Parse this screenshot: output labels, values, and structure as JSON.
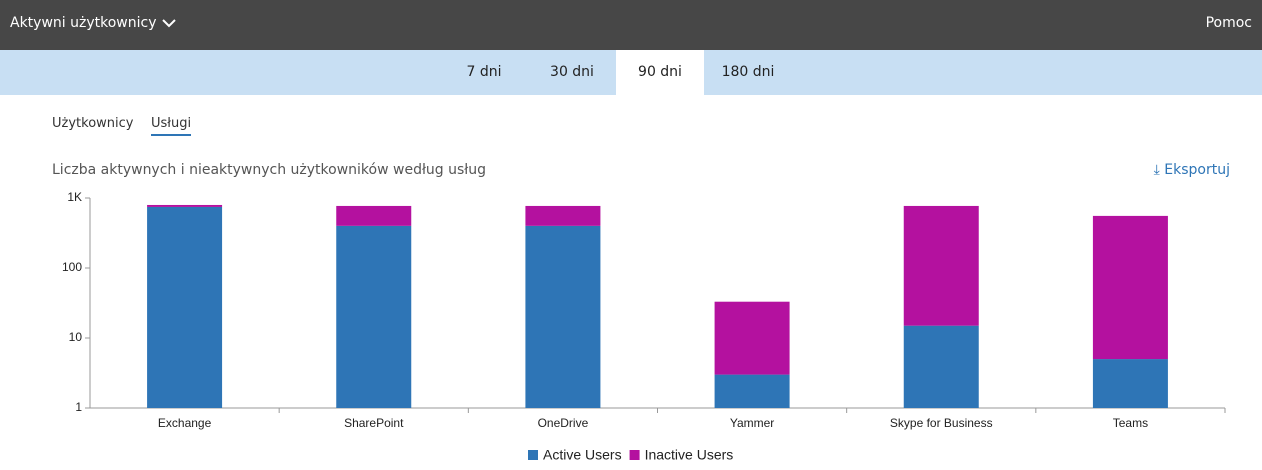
{
  "header": {
    "title": "Aktywni użytkownicy",
    "help": "Pomoc"
  },
  "periods": [
    "7 dni",
    "30 dni",
    "90 dni",
    "180 dni"
  ],
  "selected_period": 2,
  "subtabs": [
    "Użytkownicy",
    "Usługi"
  ],
  "selected_subtab": 1,
  "export": "Eksportuj",
  "chart_data": {
    "type": "bar",
    "stacked": true,
    "title": "Liczba aktywnych i nieaktywnych użytkowników według usług",
    "categories": [
      "Exchange",
      "SharePoint",
      "OneDrive",
      "Yammer",
      "Skype for Business",
      "Teams"
    ],
    "series": [
      {
        "name": "Active Users",
        "color": "#2e75b6",
        "values": [
          745,
          400,
          400,
          3,
          15,
          5
        ]
      },
      {
        "name": "Inactive Users",
        "color": "#b4119f",
        "values": [
          50,
          370,
          370,
          30,
          755,
          550
        ]
      }
    ],
    "log_scale": true,
    "ylim": [
      1,
      1000
    ],
    "yticks": [
      1,
      10,
      100,
      {
        "value": 1000,
        "label": "1K"
      }
    ],
    "grid": false,
    "legend": "bottom"
  }
}
